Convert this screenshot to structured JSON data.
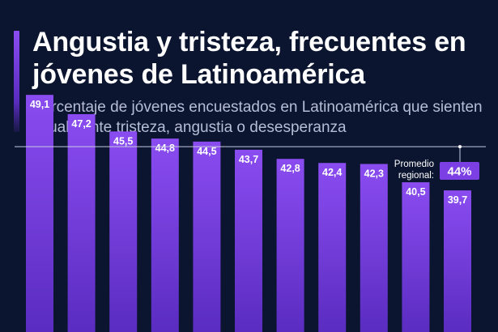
{
  "header": {
    "title": "Angustia y tristeza, frecuentes en jóvenes de Latinoamérica",
    "subtitle": "Porcentaje de jóvenes encuestados en Latinoamérica que sienten usualmente tristeza, angustia o desesperanza"
  },
  "chart_data": {
    "type": "bar",
    "title": "Angustia y tristeza, frecuentes en jóvenes de Latinoamérica",
    "subtitle": "Porcentaje de jóvenes encuestados en Latinoamérica que sienten usualmente tristeza, angustia o desesperanza",
    "values": [
      49.1,
      47.2,
      45.5,
      44.8,
      44.5,
      43.7,
      42.8,
      42.4,
      42.3,
      40.5,
      39.7
    ],
    "value_labels": [
      "49,1",
      "47,2",
      "45,5",
      "44,8",
      "44,5",
      "43,7",
      "42,8",
      "42,4",
      "42,3",
      "40,5",
      "39,7"
    ],
    "reference_line": {
      "value": 44,
      "label_line1": "Promedio",
      "label_line2": "regional:",
      "badge": "44%"
    },
    "ylim": [
      0,
      50
    ]
  },
  "colors": {
    "background": "#0c1530",
    "bar_top": "#8a4cf0",
    "bar_bottom": "#5a2cc0",
    "badge": "#7b3fe4",
    "reference_line": "#c7cbe0"
  }
}
